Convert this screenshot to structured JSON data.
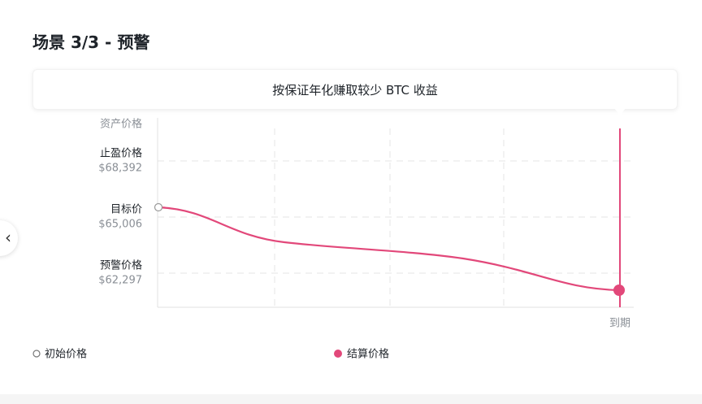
{
  "header": {
    "title": "场景 3/3 - 预警"
  },
  "banner": {
    "text": "按保证年化赚取较少 BTC 收益"
  },
  "chart": {
    "y_axis_title": "资产价格",
    "levels": [
      {
        "label": "止盈价格",
        "price": "$68,392"
      },
      {
        "label": "目标价",
        "price": "$65,006"
      },
      {
        "label": "预警价格",
        "price": "$62,297"
      }
    ],
    "x_label": "到期"
  },
  "legend": [
    {
      "label": "初始价格"
    },
    {
      "label": "结算价格"
    }
  ]
}
